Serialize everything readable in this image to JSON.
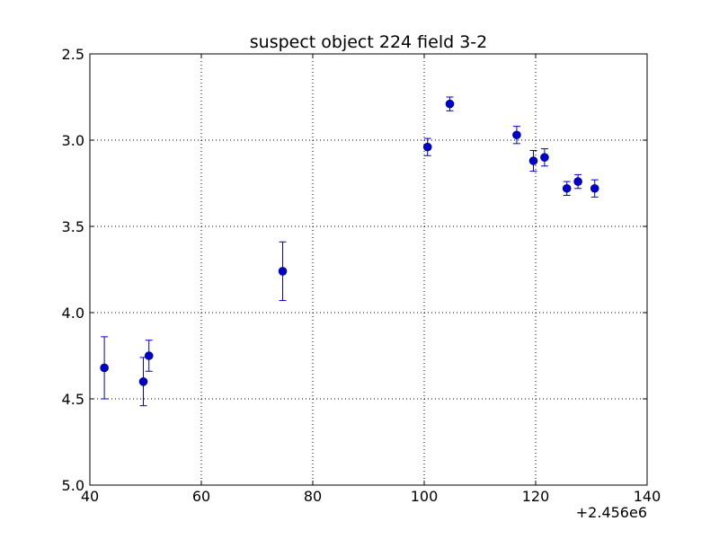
{
  "chart_data": {
    "type": "scatter",
    "title": "suspect object 224 field 3-2",
    "xlabel": "",
    "ylabel": "",
    "x_offset_label": "+2.456e6",
    "xlim": [
      40,
      140
    ],
    "ylim": [
      2.5,
      5.0
    ],
    "y_inverted": true,
    "grid": true,
    "x_ticks": [
      40,
      60,
      80,
      100,
      120,
      140
    ],
    "x_tick_labels": [
      "40",
      "60",
      "80",
      "100",
      "120",
      "140"
    ],
    "y_ticks": [
      2.5,
      3.0,
      3.5,
      4.0,
      4.5,
      5.0
    ],
    "y_tick_labels": [
      "2.5",
      "3.0",
      "3.5",
      "4.0",
      "4.5",
      "5.0"
    ],
    "marker_color": "#0000cc",
    "points": [
      {
        "x": 42.6,
        "y": 4.32,
        "err": 0.18
      },
      {
        "x": 49.6,
        "y": 4.4,
        "err": 0.14
      },
      {
        "x": 50.6,
        "y": 4.25,
        "err": 0.09
      },
      {
        "x": 74.6,
        "y": 3.76,
        "err": 0.17
      },
      {
        "x": 100.6,
        "y": 3.04,
        "err": 0.05
      },
      {
        "x": 104.6,
        "y": 2.79,
        "err": 0.04
      },
      {
        "x": 116.6,
        "y": 2.97,
        "err": 0.05
      },
      {
        "x": 119.6,
        "y": 3.12,
        "err": 0.06
      },
      {
        "x": 121.6,
        "y": 3.1,
        "err": 0.05
      },
      {
        "x": 125.6,
        "y": 3.28,
        "err": 0.04
      },
      {
        "x": 127.6,
        "y": 3.24,
        "err": 0.04
      },
      {
        "x": 130.6,
        "y": 3.28,
        "err": 0.05
      }
    ]
  }
}
